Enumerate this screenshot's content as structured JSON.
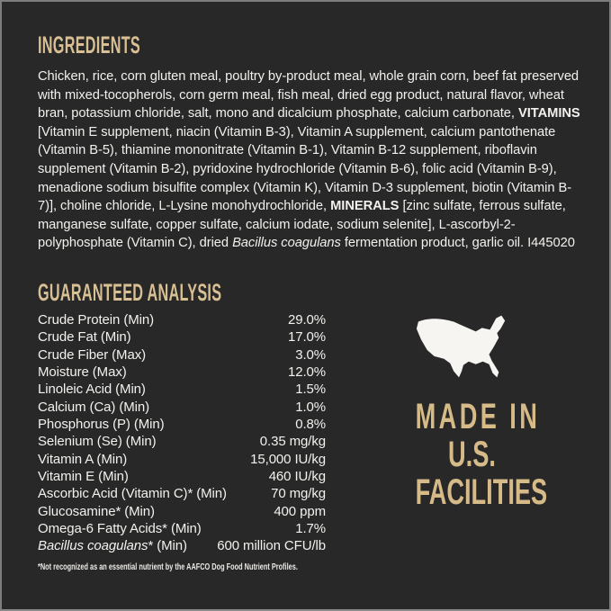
{
  "colors": {
    "background": "#282828",
    "frame": "#7d7d7d",
    "heading_tan": "#d9bf94",
    "body_text": "#f3f1ed",
    "badge_tan": "#d6ba88",
    "map_fill": "#f6f5f2"
  },
  "ingredients": {
    "heading": "INGREDIENTS",
    "segments": [
      {
        "style": "normal",
        "text": "Chicken, rice, corn gluten meal, poultry by-product meal, whole grain corn, beef fat preserved with mixed-tocopherols, corn germ meal, fish meal, dried egg product, natural flavor, wheat bran, potassium chloride, salt, mono and dicalcium phosphate, calcium carbonate, "
      },
      {
        "style": "bold",
        "text": "VITAMINS"
      },
      {
        "style": "normal",
        "text": " [Vitamin E supplement, niacin (Vitamin B-3), Vitamin A supplement, calcium pantothenate (Vitamin B-5), thiamine mononitrate (Vitamin B-1), Vitamin B-12 supplement, riboflavin supplement (Vitamin B-2), pyridoxine hydrochloride (Vitamin B-6), folic acid (Vitamin B-9), menadione sodium bisulfite complex (Vitamin K), Vitamin D-3 supplement, biotin (Vitamin B-7)], choline chloride, L-Lysine monohydrochloride, "
      },
      {
        "style": "bold",
        "text": "MINERALS"
      },
      {
        "style": "normal",
        "text": " [zinc sulfate, ferrous sulfate, manganese sulfate, copper sulfate, calcium iodate, sodium selenite], L-ascorbyl-2-polyphosphate (Vitamin C), dried "
      },
      {
        "style": "italic",
        "text": "Bacillus coagulans"
      },
      {
        "style": "normal",
        "text": " fermentation product, garlic oil. I445020"
      }
    ]
  },
  "guaranteed_analysis": {
    "heading": "GUARANTEED ANALYSIS",
    "rows": [
      {
        "label": "Crude Protein (Min)",
        "value": "29.0%"
      },
      {
        "label": "Crude Fat (Min)",
        "value": "17.0%"
      },
      {
        "label": "Crude Fiber (Max)",
        "value": "3.0%"
      },
      {
        "label": "Moisture (Max)",
        "value": "12.0%"
      },
      {
        "label": "Linoleic Acid (Min)",
        "value": "1.5%"
      },
      {
        "label": "Calcium (Ca) (Min)",
        "value": "1.0%"
      },
      {
        "label": "Phosphorus (P) (Min)",
        "value": "0.8%"
      },
      {
        "label": "Selenium (Se) (Min)",
        "value": "0.35 mg/kg"
      },
      {
        "label": "Vitamin A (Min)",
        "value": "15,000 IU/kg"
      },
      {
        "label": "Vitamin E (Min)",
        "value": "460 IU/kg"
      },
      {
        "label": "Ascorbic Acid (Vitamin C)* (Min)",
        "value": "70 mg/kg"
      },
      {
        "label": "Glucosamine* (Min)",
        "value": "400 ppm"
      },
      {
        "label": "Omega-6 Fatty Acids* (Min)",
        "value": "1.7%"
      },
      {
        "label_italic": "Bacillus coagulans",
        "label": "* (Min)",
        "value": "600 million CFU/lb"
      }
    ],
    "footnote": "*Not recognized as an essential nutrient by the AAFCO Dog Food Nutrient Profiles."
  },
  "made_in_badge": {
    "icon": "usa-map-icon",
    "lines": [
      "MADE IN",
      "U.S.",
      "FACILITIES"
    ]
  }
}
